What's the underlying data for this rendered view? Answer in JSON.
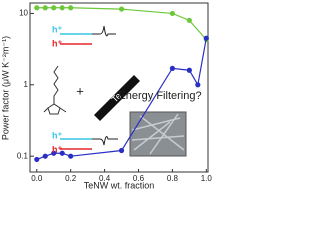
{
  "chart_data": {
    "type": "line",
    "x_label": "TeNW wt. fraction",
    "y_label": "Power factor (μW K⁻²m⁻¹)",
    "log_y": true,
    "xlim": [
      -0.04,
      1.01
    ],
    "ylim": [
      0.06,
      14
    ],
    "xticks": [
      {
        "value": 0,
        "label": "0.0"
      },
      {
        "value": 0.2,
        "label": "0.2"
      },
      {
        "value": 0.4,
        "label": "0.4"
      },
      {
        "value": 0.6,
        "label": "0.6"
      },
      {
        "value": 0.8,
        "label": "0.8"
      },
      {
        "value": 1,
        "label": "1.0"
      }
    ],
    "yticks": [
      0.1,
      1,
      10
    ],
    "series": [
      {
        "color": "#6cc83a",
        "x": [
          0,
          0.05,
          0.1,
          0.15,
          0.2,
          0.5,
          0.8,
          0.9,
          1.0
        ],
        "values": [
          12,
          12,
          12,
          12,
          12,
          11.5,
          10,
          8,
          4.3
        ]
      },
      {
        "color": "#2a2fc4",
        "x": [
          0,
          0.05,
          0.1,
          0.15,
          0.2,
          0.5,
          0.8,
          0.9,
          0.95,
          1.0
        ],
        "values": [
          0.09,
          0.1,
          0.11,
          0.11,
          0.1,
          0.12,
          1.7,
          1.6,
          1.0,
          4.5
        ]
      }
    ],
    "annotations": [
      "h⁺",
      "h⁺",
      "h⁺",
      "h⁺",
      "+",
      "Te",
      "Energy Filtering?"
    ]
  }
}
